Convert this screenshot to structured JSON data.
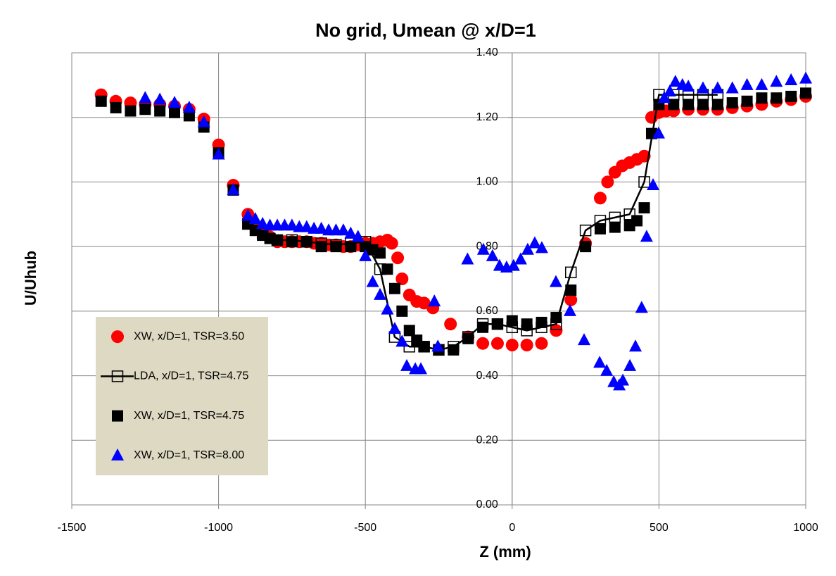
{
  "chart_data": {
    "type": "scatter",
    "title": "No grid, Umean @ x/D=1",
    "x_label": "Z (mm)",
    "y_label": "U/Uhub",
    "xlim": [
      -1500,
      1000
    ],
    "xticks": [
      -1500,
      -1000,
      -500,
      0,
      500,
      1000
    ],
    "ylim": [
      0,
      1.4
    ],
    "yticks": [
      {
        "value": 0,
        "label": "0.00"
      },
      {
        "value": 0.2,
        "label": "0.20"
      },
      {
        "value": 0.4,
        "label": "0.40"
      },
      {
        "value": 0.6,
        "label": "0.60"
      },
      {
        "value": 0.8,
        "label": "0.80"
      },
      {
        "value": 1.0,
        "label": "1.00"
      },
      {
        "value": 1.2,
        "label": "1.20"
      },
      {
        "value": 1.4,
        "label": "1.40"
      }
    ],
    "grid": true,
    "legend": "lower left",
    "series": [
      {
        "name": "XW, x/D=1, TSR=3.50",
        "color": "#ff0000",
        "marker": "circle",
        "line": false,
        "x": [
          -1400,
          -1350,
          -1300,
          -1250,
          -1200,
          -1150,
          -1100,
          -1050,
          -1000,
          -950,
          -900,
          -875,
          -850,
          -825,
          -800,
          -775,
          -750,
          -725,
          -700,
          -675,
          -650,
          -625,
          -600,
          -575,
          -550,
          -525,
          -500,
          -475,
          -450,
          -425,
          -410,
          -390,
          -375,
          -350,
          -325,
          -300,
          -270,
          -210,
          -150,
          -100,
          -50,
          0,
          50,
          100,
          150,
          200,
          250,
          300,
          325,
          350,
          375,
          400,
          425,
          450,
          475,
          500,
          525,
          550,
          600,
          650,
          700,
          750,
          800,
          850,
          900,
          950,
          1000
        ],
        "values": [
          1.27,
          1.25,
          1.245,
          1.24,
          1.24,
          1.235,
          1.225,
          1.195,
          1.115,
          0.99,
          0.9,
          0.86,
          0.845,
          0.83,
          0.815,
          0.815,
          0.815,
          0.815,
          0.815,
          0.81,
          0.81,
          0.805,
          0.805,
          0.8,
          0.8,
          0.805,
          0.81,
          0.81,
          0.815,
          0.82,
          0.81,
          0.765,
          0.7,
          0.65,
          0.63,
          0.625,
          0.61,
          0.56,
          0.52,
          0.5,
          0.5,
          0.495,
          0.495,
          0.5,
          0.54,
          0.635,
          0.81,
          0.95,
          1.0,
          1.03,
          1.05,
          1.06,
          1.07,
          1.08,
          1.2,
          1.215,
          1.22,
          1.22,
          1.225,
          1.225,
          1.225,
          1.23,
          1.235,
          1.24,
          1.25,
          1.255,
          1.265
        ]
      },
      {
        "name": "LDA, x/D=1, TSR=4.75",
        "color": "#000000",
        "marker": "square-open",
        "line": true,
        "x": [
          -900,
          -850,
          -800,
          -750,
          -700,
          -650,
          -600,
          -550,
          -500,
          -450,
          -400,
          -350,
          -300,
          -250,
          -200,
          -150,
          -100,
          -50,
          0,
          50,
          100,
          150,
          200,
          250,
          300,
          350,
          400,
          450,
          500,
          550,
          600,
          650,
          700
        ],
        "values": [
          0.87,
          0.84,
          0.82,
          0.82,
          0.815,
          0.81,
          0.805,
          0.81,
          0.815,
          0.73,
          0.52,
          0.49,
          0.49,
          0.48,
          0.49,
          0.52,
          0.56,
          0.56,
          0.55,
          0.54,
          0.55,
          0.56,
          0.72,
          0.85,
          0.88,
          0.89,
          0.9,
          1.0,
          1.27,
          1.27,
          1.27,
          1.27,
          1.27
        ]
      },
      {
        "name": "XW, x/D=1, TSR=4.75",
        "color": "#000000",
        "marker": "square",
        "line": false,
        "x": [
          -1400,
          -1350,
          -1300,
          -1250,
          -1200,
          -1150,
          -1100,
          -1050,
          -1000,
          -950,
          -900,
          -875,
          -850,
          -825,
          -800,
          -750,
          -700,
          -650,
          -600,
          -550,
          -500,
          -475,
          -450,
          -425,
          -400,
          -375,
          -350,
          -325,
          -300,
          -250,
          -200,
          -150,
          -100,
          -50,
          0,
          50,
          100,
          150,
          200,
          250,
          300,
          350,
          400,
          425,
          450,
          475,
          500,
          550,
          600,
          650,
          700,
          750,
          800,
          850,
          900,
          950,
          1000
        ],
        "values": [
          1.25,
          1.23,
          1.22,
          1.225,
          1.22,
          1.215,
          1.205,
          1.17,
          1.09,
          0.975,
          0.87,
          0.85,
          0.835,
          0.825,
          0.82,
          0.815,
          0.815,
          0.8,
          0.8,
          0.8,
          0.8,
          0.79,
          0.78,
          0.73,
          0.67,
          0.6,
          0.54,
          0.51,
          0.49,
          0.48,
          0.48,
          0.515,
          0.55,
          0.56,
          0.57,
          0.56,
          0.565,
          0.58,
          0.665,
          0.8,
          0.855,
          0.86,
          0.865,
          0.88,
          0.92,
          1.15,
          1.24,
          1.24,
          1.24,
          1.24,
          1.24,
          1.245,
          1.25,
          1.26,
          1.26,
          1.265,
          1.275
        ]
      },
      {
        "name": "XW, x/D=1, TSR=8.00",
        "color": "#0000ff",
        "marker": "triangle",
        "line": false,
        "x": [
          -1250,
          -1200,
          -1150,
          -1100,
          -1050,
          -1000,
          -950,
          -900,
          -875,
          -850,
          -825,
          -800,
          -775,
          -750,
          -725,
          -700,
          -675,
          -650,
          -625,
          -600,
          -575,
          -550,
          -525,
          -500,
          -475,
          -450,
          -425,
          -400,
          -375,
          -359,
          -330,
          -311,
          -265,
          -253,
          -152,
          -98,
          -67,
          -43,
          -19,
          5,
          29,
          53,
          77,
          101,
          149,
          197,
          245,
          298,
          322,
          346,
          365,
          377,
          401,
          420,
          441,
          458,
          480,
          499,
          518,
          537,
          556,
          580,
          600,
          650,
          700,
          750,
          800,
          850,
          900,
          950,
          1000
        ],
        "values": [
          1.26,
          1.255,
          1.245,
          1.23,
          1.185,
          1.085,
          0.975,
          0.895,
          0.885,
          0.87,
          0.865,
          0.865,
          0.865,
          0.865,
          0.86,
          0.86,
          0.855,
          0.855,
          0.85,
          0.85,
          0.85,
          0.84,
          0.83,
          0.77,
          0.69,
          0.65,
          0.605,
          0.545,
          0.505,
          0.43,
          0.42,
          0.42,
          0.63,
          0.49,
          0.76,
          0.79,
          0.77,
          0.74,
          0.735,
          0.74,
          0.76,
          0.79,
          0.81,
          0.795,
          0.69,
          0.6,
          0.51,
          0.44,
          0.415,
          0.38,
          0.37,
          0.385,
          0.43,
          0.49,
          0.61,
          0.83,
          0.99,
          1.15,
          1.26,
          1.28,
          1.31,
          1.3,
          1.295,
          1.29,
          1.29,
          1.29,
          1.3,
          1.3,
          1.31,
          1.315,
          1.32
        ]
      }
    ]
  }
}
